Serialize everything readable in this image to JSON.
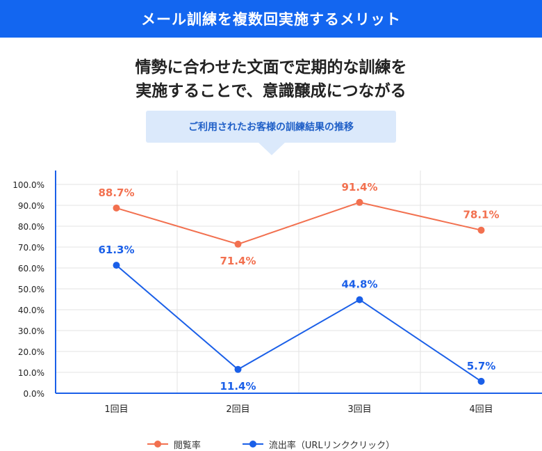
{
  "header": {
    "title": "メール訓練を複数回実施するメリット"
  },
  "headline": {
    "line1": "情勢に合わせた文面で定期的な訓練を",
    "line2": "実施することで、意識醸成につながる"
  },
  "callout": {
    "text": "ご利用されたお客様の訓練結果の推移"
  },
  "colors": {
    "banner": "#1366f0",
    "open_rate": "#f2704f",
    "click_rate": "#1a5fe8",
    "callout_bg": "#dbe9fb",
    "callout_text": "#1f5fc7"
  },
  "chart_data": {
    "type": "line",
    "categories": [
      "1回目",
      "2回目",
      "3回目",
      "4回目"
    ],
    "y_ticks": [
      "0.0%",
      "10.0%",
      "20.0%",
      "30.0%",
      "40.0%",
      "50.0%",
      "60.0%",
      "70.0%",
      "80.0%",
      "90.0%",
      "100.0%"
    ],
    "ylim": [
      0,
      100
    ],
    "grid": true,
    "legend_position": "bottom",
    "series": [
      {
        "name": "閲覧率",
        "color": "#f2704f",
        "values": [
          88.7,
          71.4,
          91.4,
          78.1
        ],
        "labels": [
          "88.7%",
          "71.4%",
          "91.4%",
          "78.1%"
        ],
        "label_positions": [
          "above",
          "below",
          "above",
          "above"
        ]
      },
      {
        "name": "流出率（URLリンククリック）",
        "color": "#1a5fe8",
        "values": [
          61.3,
          11.4,
          44.8,
          5.7
        ],
        "labels": [
          "61.3%",
          "11.4%",
          "44.8%",
          "5.7%"
        ],
        "label_positions": [
          "above",
          "below",
          "above",
          "above"
        ]
      }
    ]
  }
}
